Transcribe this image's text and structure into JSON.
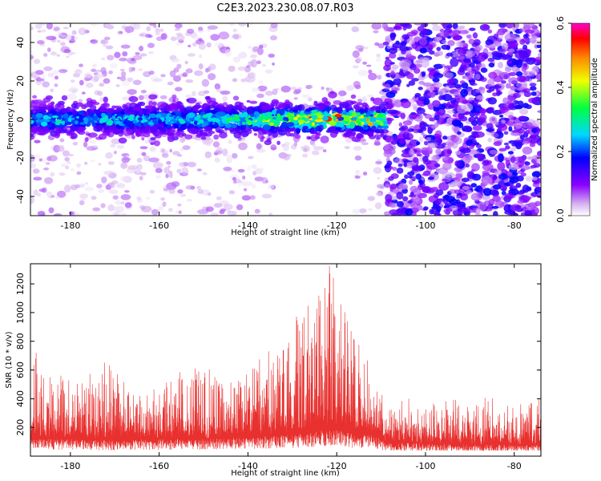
{
  "figure": {
    "title": "C2E3.2023.230.08.07.R03"
  },
  "chart_data": [
    {
      "type": "heatmap",
      "xlabel": "Height of straight line (km)",
      "ylabel": "Frequency (Hz)",
      "xlim": [
        -189,
        -74
      ],
      "ylim": [
        -50,
        50
      ],
      "x_ticks": [
        -180,
        -160,
        -140,
        -120,
        -100,
        -80
      ],
      "y_ticks": [
        -40,
        -20,
        0,
        20,
        40
      ],
      "colorbar": {
        "label": "Normalized spectral amplitude",
        "range": [
          0.0,
          0.6
        ],
        "ticks": [
          0.0,
          0.2,
          0.4,
          0.6
        ],
        "colormap": "rainbow (white-violet-blue-cyan-green-yellow-red-magenta)"
      },
      "signal_band": {
        "center_frequency_hz": 0,
        "half_width_hz": 10,
        "x_start": -189,
        "x_end": -109,
        "peak_amplitude": 0.55,
        "peak_x": -121
      },
      "background": {
        "sparse_region": [
          -189,
          -109
        ],
        "dense_region": [
          -109,
          -74
        ],
        "dense_amplitude": 0.15
      }
    },
    {
      "type": "line",
      "xlabel": "Height of straight line (km)",
      "ylabel": "SNR (10 * v/v)",
      "xlim": [
        -189,
        -74
      ],
      "ylim": [
        0,
        1340
      ],
      "x_ticks": [
        -180,
        -160,
        -140,
        -120,
        -100,
        -80
      ],
      "y_ticks": [
        200,
        400,
        600,
        800,
        1000,
        1200
      ],
      "series_color": "#e8302e",
      "envelope": {
        "x": [
          -189,
          -180,
          -172,
          -165,
          -158,
          -150,
          -145,
          -140,
          -135,
          -130,
          -126,
          -123,
          -121,
          -119,
          -117,
          -114,
          -111,
          -109,
          -105,
          -100,
          -95,
          -90,
          -85,
          -80,
          -75
        ],
        "baseline": [
          160,
          150,
          140,
          150,
          150,
          150,
          160,
          170,
          180,
          190,
          210,
          230,
          240,
          220,
          200,
          190,
          180,
          120,
          120,
          110,
          110,
          100,
          105,
          100,
          100
        ],
        "peak": [
          740,
          520,
          680,
          420,
          560,
          640,
          480,
          600,
          720,
          960,
          1080,
          1200,
          1350,
          1150,
          900,
          780,
          620,
          300,
          380,
          360,
          420,
          340,
          420,
          380,
          400
        ]
      }
    }
  ]
}
